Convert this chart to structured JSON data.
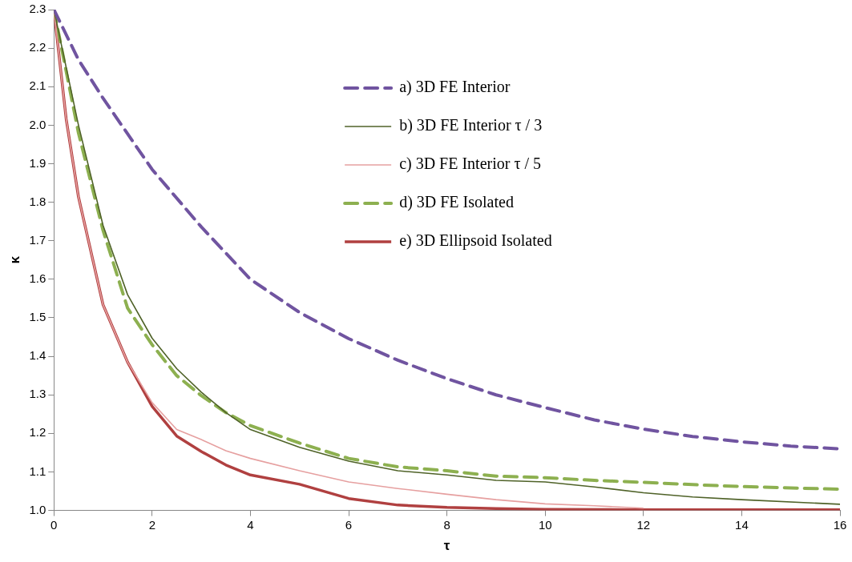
{
  "chart_data": {
    "type": "line",
    "xlabel": "τ",
    "ylabel": "κ",
    "xlim": [
      0,
      16
    ],
    "xticks": [
      0,
      2,
      4,
      6,
      8,
      10,
      12,
      14,
      16
    ],
    "ylim": [
      1.0,
      2.3
    ],
    "yticks": [
      {
        "value": 1.0,
        "label": "1.0"
      },
      1.1,
      1.2,
      1.3,
      1.4,
      1.5,
      1.6,
      1.7,
      1.8,
      1.9,
      {
        "value": 2.0,
        "label": "2.0"
      },
      2.1,
      2.2,
      2.3
    ],
    "grid": false,
    "legend": "top right",
    "marker": "none",
    "series": [
      {
        "name": "a) 3D FE Interior",
        "color": "#7054a0",
        "line_style": "dashed",
        "x": [
          0,
          0.5,
          1,
          2,
          3,
          4,
          5,
          6,
          7,
          8,
          9,
          10,
          11,
          12,
          13,
          14,
          15,
          16
        ],
        "values": [
          2.3,
          2.17,
          2.07,
          1.885,
          1.736,
          1.6,
          1.514,
          1.446,
          1.39,
          1.342,
          1.3,
          1.267,
          1.235,
          1.211,
          1.192,
          1.178,
          1.167,
          1.16
        ]
      },
      {
        "name": "b) 3D FE Interior τ / 3",
        "color": "#4f6228",
        "line_style": "solid",
        "x": [
          0,
          0.5,
          1,
          1.5,
          2,
          2.5,
          3,
          3.5,
          4,
          5,
          6,
          7,
          8,
          9,
          10,
          11,
          12,
          13,
          14,
          16
        ],
        "values": [
          2.3,
          2.0,
          1.74,
          1.56,
          1.447,
          1.368,
          1.307,
          1.254,
          1.21,
          1.164,
          1.128,
          1.103,
          1.092,
          1.078,
          1.074,
          1.061,
          1.046,
          1.035,
          1.028,
          1.016
        ]
      },
      {
        "name": "c) 3D FE Interior τ / 5",
        "color": "#e6a0a0",
        "line_style": "solid",
        "x": [
          0,
          0.25,
          0.5,
          1,
          1.5,
          2,
          2.5,
          3,
          3.5,
          4,
          5,
          6,
          7,
          8,
          9,
          10,
          11,
          12
        ],
        "values": [
          2.3,
          2.016,
          1.814,
          1.534,
          1.385,
          1.28,
          1.21,
          1.184,
          1.155,
          1.135,
          1.103,
          1.074,
          1.057,
          1.042,
          1.028,
          1.017,
          1.012,
          1.006
        ]
      },
      {
        "name": "d) 3D FE Isolated",
        "color": "#8db050",
        "line_style": "dashed",
        "x": [
          0,
          0.5,
          1,
          1.5,
          2,
          2.5,
          3,
          3.5,
          4,
          5,
          6,
          7,
          8,
          9,
          10,
          11,
          12,
          13,
          14,
          16
        ],
        "values": [
          2.3,
          1.98,
          1.727,
          1.525,
          1.43,
          1.35,
          1.298,
          1.254,
          1.22,
          1.175,
          1.135,
          1.113,
          1.103,
          1.089,
          1.085,
          1.078,
          1.073,
          1.067,
          1.062,
          1.055
        ]
      },
      {
        "name": "e) 3D Ellipsoid Isolated",
        "color": "#b04040",
        "line_style": "solid",
        "x": [
          0,
          0.25,
          0.5,
          1,
          1.5,
          2,
          2.5,
          3,
          3.5,
          4,
          5,
          6,
          7,
          8,
          9,
          10,
          12,
          14,
          16
        ],
        "values": [
          2.3,
          2.016,
          1.814,
          1.534,
          1.385,
          1.27,
          1.193,
          1.153,
          1.118,
          1.092,
          1.068,
          1.031,
          1.014,
          1.008,
          1.005,
          1.003,
          1.002,
          1.002,
          1.002
        ]
      }
    ]
  }
}
